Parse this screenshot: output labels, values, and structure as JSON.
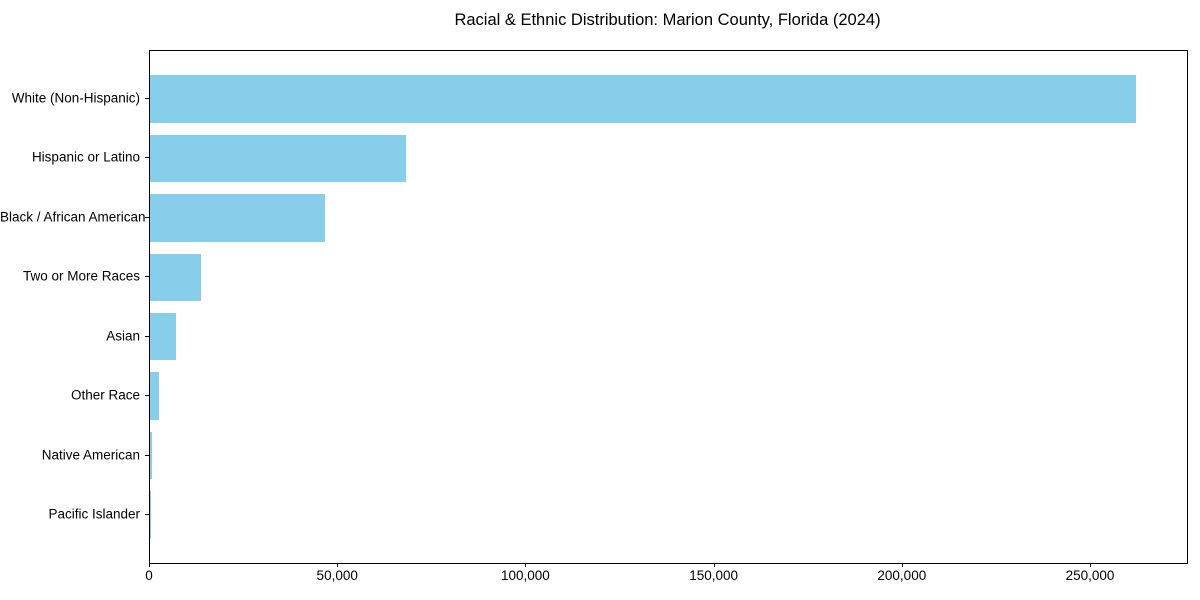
{
  "figure": {
    "background": "#ffffff"
  },
  "chart_data": {
    "type": "bar",
    "orientation": "horizontal",
    "title": "Racial & Ethnic Distribution: Marion County, Florida (2024)",
    "categories": [
      "White (Non-Hispanic)",
      "Hispanic or Latino",
      "Black / African American",
      "Two or More Races",
      "Asian",
      "Other Race",
      "Native American",
      "Pacific Islander"
    ],
    "values": [
      262000,
      68000,
      46500,
      13500,
      7000,
      2400,
      400,
      150
    ],
    "xlabel": "",
    "ylabel": "",
    "xlim": [
      0,
      275500
    ],
    "xticks": [
      0,
      50000,
      100000,
      150000,
      200000,
      250000
    ],
    "xtick_labels": [
      "0",
      "50,000",
      "100,000",
      "150,000",
      "200,000",
      "250,000"
    ],
    "bar_color": "#87CEEB",
    "axis_color": "#000000",
    "grid": false,
    "legend": null,
    "categories_order": "top-to-bottom"
  }
}
